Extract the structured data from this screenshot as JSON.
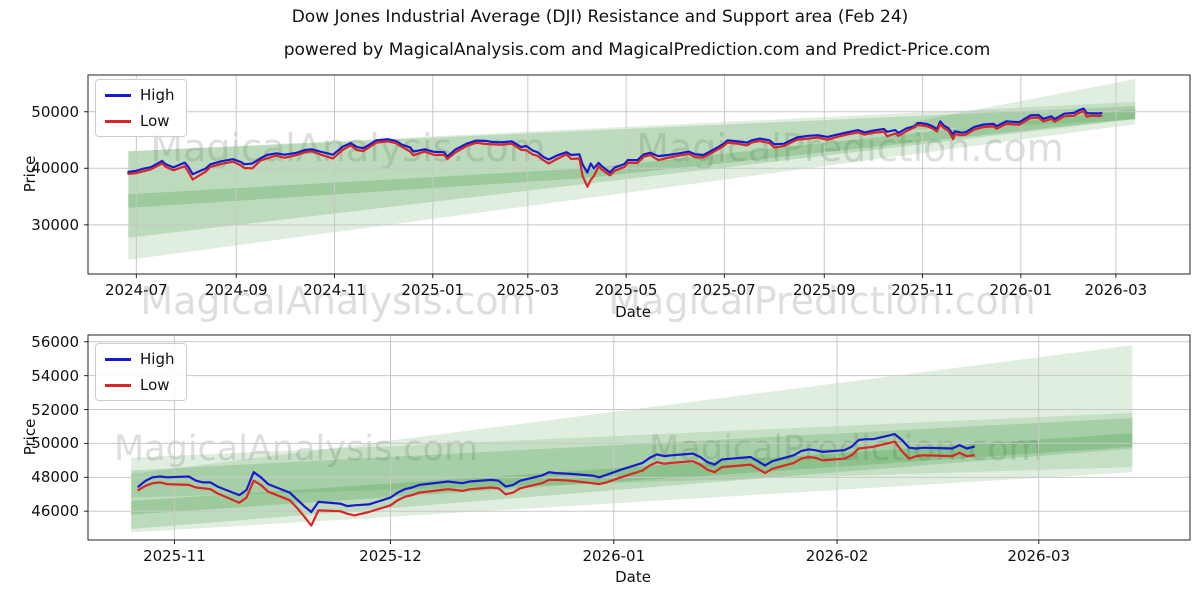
{
  "figure": {
    "title": "Dow Jones Industrial Average (DJI) Resistance and Support area (Feb 24)",
    "subtitle": "powered by MagicalAnalysis.com and MagicalPrediction.com and Predict-Price.com"
  },
  "legend": {
    "high": "High",
    "low": "Low"
  },
  "watermark": {
    "analysis": "MagicalAnalysis.com",
    "prediction": "MagicalPrediction.com"
  },
  "colors": {
    "high": "#1a1acd",
    "low": "#d92626",
    "band": "#2f8f2f",
    "grid": "#c8c8c8",
    "spine": "#222222",
    "watermark": "#c4c4c4"
  },
  "chart_data": [
    {
      "type": "line",
      "name": "full-history",
      "ylabel": "Price",
      "xlabel": "Date",
      "legend_position": "upper-left",
      "grid": true,
      "xlim": [
        "2024-06-01",
        "2026-04-16"
      ],
      "ylim": [
        21300,
        56500
      ],
      "yticks": [
        {
          "v": 30000,
          "label": "30000"
        },
        {
          "v": 40000,
          "label": "40000"
        },
        {
          "v": 50000,
          "label": "50000"
        }
      ],
      "xticks": [
        {
          "date": "2024-07-01",
          "label": "2024-07"
        },
        {
          "date": "2024-09-01",
          "label": "2024-09"
        },
        {
          "date": "2024-11-01",
          "label": "2024-11"
        },
        {
          "date": "2025-01-01",
          "label": "2025-01"
        },
        {
          "date": "2025-03-01",
          "label": "2025-03"
        },
        {
          "date": "2025-05-01",
          "label": "2025-05"
        },
        {
          "date": "2025-07-01",
          "label": "2025-07"
        },
        {
          "date": "2025-09-01",
          "label": "2025-09"
        },
        {
          "date": "2025-11-01",
          "label": "2025-11"
        },
        {
          "date": "2026-01-01",
          "label": "2026-01"
        },
        {
          "date": "2026-03-01",
          "label": "2026-03"
        }
      ],
      "bands": [
        {
          "alpha": 0.15,
          "upper": [
            [
              "2024-06-26",
              43000
            ],
            [
              "2026-03-13",
              51750
            ]
          ],
          "lower": [
            [
              "2024-06-26",
              23800
            ],
            [
              "2026-03-13",
              47800
            ]
          ]
        },
        {
          "alpha": 0.2,
          "upper": [
            [
              "2024-06-26",
              43000
            ],
            [
              "2026-03-13",
              51000
            ]
          ],
          "lower": [
            [
              "2024-06-26",
              27700
            ],
            [
              "2026-03-13",
              48700
            ]
          ]
        },
        {
          "alpha": 0.22,
          "upper": [
            [
              "2024-06-26",
              35400
            ],
            [
              "2025-04-07",
              40000
            ],
            [
              "2026-03-13",
              50400
            ]
          ],
          "lower": [
            [
              "2024-06-26",
              33000
            ],
            [
              "2025-04-07",
              38300
            ],
            [
              "2026-03-13",
              48800
            ]
          ]
        },
        {
          "alpha": 0.15,
          "upper": [
            [
              "2025-10-26",
              48200
            ],
            [
              "2026-03-13",
              55800
            ]
          ],
          "lower": [
            [
              "2025-10-26",
              46800
            ],
            [
              "2026-03-13",
              48600
            ]
          ]
        }
      ],
      "series": {
        "dates": [
          "2024-06-26",
          "2024-07-01",
          "2024-07-05",
          "2024-07-10",
          "2024-07-17",
          "2024-07-19",
          "2024-07-24",
          "2024-07-31",
          "2024-08-02",
          "2024-08-05",
          "2024-08-08",
          "2024-08-13",
          "2024-08-16",
          "2024-08-23",
          "2024-08-30",
          "2024-09-04",
          "2024-09-06",
          "2024-09-11",
          "2024-09-16",
          "2024-09-20",
          "2024-09-26",
          "2024-10-01",
          "2024-10-08",
          "2024-10-14",
          "2024-10-18",
          "2024-10-23",
          "2024-10-31",
          "2024-11-06",
          "2024-11-11",
          "2024-11-15",
          "2024-11-19",
          "2024-11-27",
          "2024-12-04",
          "2024-12-09",
          "2024-12-13",
          "2024-12-18",
          "2024-12-20",
          "2024-12-27",
          "2025-01-02",
          "2025-01-08",
          "2025-01-10",
          "2025-01-15",
          "2025-01-22",
          "2025-01-28",
          "2025-02-03",
          "2025-02-07",
          "2025-02-12",
          "2025-02-19",
          "2025-02-25",
          "2025-02-28",
          "2025-03-04",
          "2025-03-07",
          "2025-03-11",
          "2025-03-14",
          "2025-03-19",
          "2025-03-25",
          "2025-03-28",
          "2025-04-02",
          "2025-04-04",
          "2025-04-07",
          "2025-04-09",
          "2025-04-11",
          "2025-04-14",
          "2025-04-16",
          "2025-04-21",
          "2025-04-24",
          "2025-04-30",
          "2025-05-02",
          "2025-05-08",
          "2025-05-12",
          "2025-05-16",
          "2025-05-21",
          "2025-05-27",
          "2025-06-03",
          "2025-06-09",
          "2025-06-13",
          "2025-06-18",
          "2025-06-24",
          "2025-06-30",
          "2025-07-03",
          "2025-07-09",
          "2025-07-15",
          "2025-07-18",
          "2025-07-23",
          "2025-07-29",
          "2025-08-01",
          "2025-08-07",
          "2025-08-12",
          "2025-08-15",
          "2025-08-22",
          "2025-08-28",
          "2025-09-03",
          "2025-09-09",
          "2025-09-15",
          "2025-09-22",
          "2025-09-26",
          "2025-10-01",
          "2025-10-08",
          "2025-10-10",
          "2025-10-15",
          "2025-10-17",
          "2025-10-22",
          "2025-10-27",
          "2025-10-29",
          "2025-10-31",
          "2025-11-04",
          "2025-11-07",
          "2025-11-10",
          "2025-11-12",
          "2025-11-14",
          "2025-11-17",
          "2025-11-20",
          "2025-11-21",
          "2025-11-25",
          "2025-11-28",
          "2025-12-03",
          "2025-12-09",
          "2025-12-15",
          "2025-12-17",
          "2025-12-23",
          "2025-12-31",
          "2026-01-07",
          "2026-01-12",
          "2026-01-15",
          "2026-01-20",
          "2026-01-22",
          "2026-01-28",
          "2026-02-03",
          "2026-02-06",
          "2026-02-09",
          "2026-02-11",
          "2026-02-13",
          "2026-02-17",
          "2026-02-19",
          "2026-02-20"
        ],
        "high": [
          39350,
          39550,
          39900,
          40200,
          41300,
          40750,
          40150,
          41000,
          40350,
          38950,
          39350,
          39950,
          40700,
          41250,
          41600,
          41100,
          40700,
          40850,
          41750,
          42350,
          42650,
          42400,
          42700,
          43250,
          43350,
          42950,
          42400,
          43800,
          44450,
          43750,
          43550,
          44950,
          45150,
          44850,
          44150,
          43700,
          42950,
          43350,
          42900,
          42850,
          42050,
          43300,
          44350,
          44900,
          44850,
          44650,
          44600,
          44750,
          43750,
          43950,
          43150,
          42850,
          41950,
          41550,
          42250,
          42850,
          42350,
          42450,
          40650,
          39250,
          40850,
          40000,
          40950,
          40350,
          39250,
          40150,
          40750,
          41450,
          41450,
          42450,
          42750,
          42150,
          42350,
          42650,
          42950,
          42450,
          42350,
          43250,
          44250,
          44950,
          44750,
          44550,
          44950,
          45250,
          44950,
          44250,
          44350,
          45050,
          45450,
          45750,
          45850,
          45550,
          45950,
          46350,
          46750,
          46350,
          46650,
          46950,
          46450,
          46750,
          46250,
          47050,
          47450,
          48000,
          48000,
          47800,
          47450,
          46950,
          48300,
          47600,
          47100,
          45950,
          46550,
          46300,
          46400,
          47300,
          47750,
          47850,
          47450,
          48300,
          48150,
          49350,
          49400,
          48750,
          49200,
          48700,
          49650,
          49800,
          50250,
          50550,
          49750,
          49750,
          49700,
          49700,
          49800
        ],
        "low": [
          39000,
          39150,
          39450,
          39800,
          40850,
          40300,
          39650,
          40350,
          39500,
          38000,
          38550,
          39400,
          40250,
          40800,
          41150,
          40500,
          40050,
          40000,
          41350,
          41750,
          42250,
          41850,
          42300,
          42850,
          43000,
          42450,
          41750,
          43250,
          44050,
          43200,
          43050,
          44550,
          44750,
          44450,
          43750,
          42950,
          42300,
          42950,
          42350,
          42350,
          41650,
          42800,
          43950,
          44500,
          44300,
          44250,
          44150,
          44350,
          43250,
          43200,
          42450,
          42200,
          41350,
          40850,
          41650,
          42450,
          41650,
          41750,
          38650,
          36750,
          37950,
          38650,
          40350,
          39750,
          38750,
          39550,
          40250,
          40950,
          40950,
          42050,
          42350,
          41450,
          41850,
          42250,
          42550,
          41950,
          41950,
          42850,
          43850,
          44550,
          44350,
          44050,
          44550,
          44850,
          44450,
          43650,
          43950,
          44650,
          45050,
          45250,
          45450,
          45050,
          45550,
          45950,
          46350,
          45950,
          46250,
          46450,
          45650,
          46150,
          45750,
          46550,
          47250,
          47650,
          47600,
          47400,
          47050,
          46500,
          47800,
          47150,
          46650,
          45150,
          46050,
          45850,
          45950,
          46850,
          47300,
          47400,
          47000,
          47850,
          47700,
          48900,
          48950,
          48300,
          48750,
          48250,
          49200,
          49300,
          49800,
          50100,
          49100,
          49300,
          49250,
          49250,
          49300
        ]
      }
    },
    {
      "type": "line",
      "name": "recent-zoom",
      "ylabel": "Price",
      "xlabel": "Date",
      "legend_position": "upper-left",
      "grid": true,
      "xlim": [
        "2025-10-20",
        "2026-03-22"
      ],
      "ylim": [
        44300,
        56400
      ],
      "yticks": [
        {
          "v": 46000,
          "label": "46000"
        },
        {
          "v": 48000,
          "label": "48000"
        },
        {
          "v": 50000,
          "label": "50000"
        },
        {
          "v": 52000,
          "label": "52000"
        },
        {
          "v": 54000,
          "label": "54000"
        },
        {
          "v": 56000,
          "label": "56000"
        }
      ],
      "xticks": [
        {
          "date": "2025-11-01",
          "label": "2025-11"
        },
        {
          "date": "2025-12-01",
          "label": "2025-12"
        },
        {
          "date": "2026-01-01",
          "label": "2026-01"
        },
        {
          "date": "2026-02-01",
          "label": "2026-02"
        },
        {
          "date": "2026-03-01",
          "label": "2026-03"
        }
      ],
      "bands": [
        {
          "alpha": 0.15,
          "upper": [
            [
              "2025-10-26",
              49160
            ],
            [
              "2026-03-14",
              51800
            ]
          ],
          "lower": [
            [
              "2025-10-26",
              44750
            ],
            [
              "2026-03-14",
              48300
            ]
          ]
        },
        {
          "alpha": 0.2,
          "upper": [
            [
              "2025-10-26",
              48400
            ],
            [
              "2026-03-14",
              51500
            ]
          ],
          "lower": [
            [
              "2025-10-26",
              44950
            ],
            [
              "2026-03-14",
              49700
            ]
          ]
        },
        {
          "alpha": 0.22,
          "upper": [
            [
              "2025-10-26",
              46600
            ],
            [
              "2026-03-14",
              50600
            ]
          ],
          "lower": [
            [
              "2025-10-26",
              45800
            ],
            [
              "2026-03-14",
              49800
            ]
          ]
        },
        {
          "alpha": 0.15,
          "upper": [
            [
              "2025-10-26",
              48200
            ],
            [
              "2026-03-14",
              55800
            ]
          ],
          "lower": [
            [
              "2025-10-26",
              46800
            ],
            [
              "2026-03-14",
              48600
            ]
          ]
        }
      ],
      "series": {
        "dates": [
          "2025-10-27",
          "2025-10-28",
          "2025-10-29",
          "2025-10-30",
          "2025-10-31",
          "2025-11-03",
          "2025-11-04",
          "2025-11-05",
          "2025-11-06",
          "2025-11-07",
          "2025-11-10",
          "2025-11-11",
          "2025-11-12",
          "2025-11-13",
          "2025-11-14",
          "2025-11-17",
          "2025-11-18",
          "2025-11-19",
          "2025-11-20",
          "2025-11-21",
          "2025-11-24",
          "2025-11-25",
          "2025-11-26",
          "2025-11-28",
          "2025-12-01",
          "2025-12-02",
          "2025-12-03",
          "2025-12-04",
          "2025-12-05",
          "2025-12-08",
          "2025-12-09",
          "2025-12-10",
          "2025-12-11",
          "2025-12-12",
          "2025-12-15",
          "2025-12-16",
          "2025-12-17",
          "2025-12-18",
          "2025-12-19",
          "2025-12-22",
          "2025-12-23",
          "2025-12-24",
          "2025-12-26",
          "2025-12-29",
          "2025-12-30",
          "2025-12-31",
          "2026-01-02",
          "2026-01-05",
          "2026-01-06",
          "2026-01-07",
          "2026-01-08",
          "2026-01-09",
          "2026-01-12",
          "2026-01-13",
          "2026-01-14",
          "2026-01-15",
          "2026-01-16",
          "2026-01-20",
          "2026-01-21",
          "2026-01-22",
          "2026-01-23",
          "2026-01-26",
          "2026-01-27",
          "2026-01-28",
          "2026-01-29",
          "2026-01-30",
          "2026-02-02",
          "2026-02-03",
          "2026-02-04",
          "2026-02-05",
          "2026-02-06",
          "2026-02-09",
          "2026-02-10",
          "2026-02-11",
          "2026-02-12",
          "2026-02-13",
          "2026-02-17",
          "2026-02-18",
          "2026-02-19",
          "2026-02-20"
        ],
        "high": [
          47450,
          47800,
          48000,
          48050,
          48000,
          48050,
          47800,
          47700,
          47700,
          47450,
          46950,
          47250,
          48300,
          48000,
          47600,
          47100,
          46700,
          46300,
          45950,
          46550,
          46450,
          46300,
          46350,
          46400,
          46800,
          47100,
          47300,
          47400,
          47550,
          47700,
          47750,
          47700,
          47650,
          47750,
          47850,
          47800,
          47450,
          47550,
          47800,
          48100,
          48300,
          48250,
          48200,
          48100,
          48000,
          48150,
          48450,
          48850,
          49150,
          49350,
          49250,
          49300,
          49400,
          49200,
          48900,
          48750,
          49050,
          49200,
          48950,
          48700,
          48950,
          49300,
          49550,
          49650,
          49600,
          49500,
          49600,
          49800,
          50200,
          50250,
          50250,
          50550,
          50200,
          49750,
          49700,
          49750,
          49700,
          49900,
          49700,
          49800
        ],
        "low": [
          47250,
          47500,
          47650,
          47700,
          47600,
          47550,
          47400,
          47350,
          47300,
          47050,
          46500,
          46800,
          47800,
          47550,
          47150,
          46650,
          46200,
          45700,
          45150,
          46050,
          46000,
          45850,
          45750,
          45950,
          46350,
          46650,
          46850,
          46950,
          47100,
          47250,
          47300,
          47250,
          47200,
          47300,
          47400,
          47350,
          47000,
          47100,
          47350,
          47650,
          47850,
          47850,
          47800,
          47650,
          47600,
          47700,
          48000,
          48400,
          48700,
          48900,
          48800,
          48850,
          48950,
          48750,
          48450,
          48300,
          48600,
          48750,
          48500,
          48250,
          48500,
          48850,
          49100,
          49200,
          49150,
          49000,
          49100,
          49300,
          49700,
          49750,
          49800,
          50100,
          49550,
          49100,
          49250,
          49300,
          49250,
          49450,
          49250,
          49300
        ]
      }
    }
  ]
}
